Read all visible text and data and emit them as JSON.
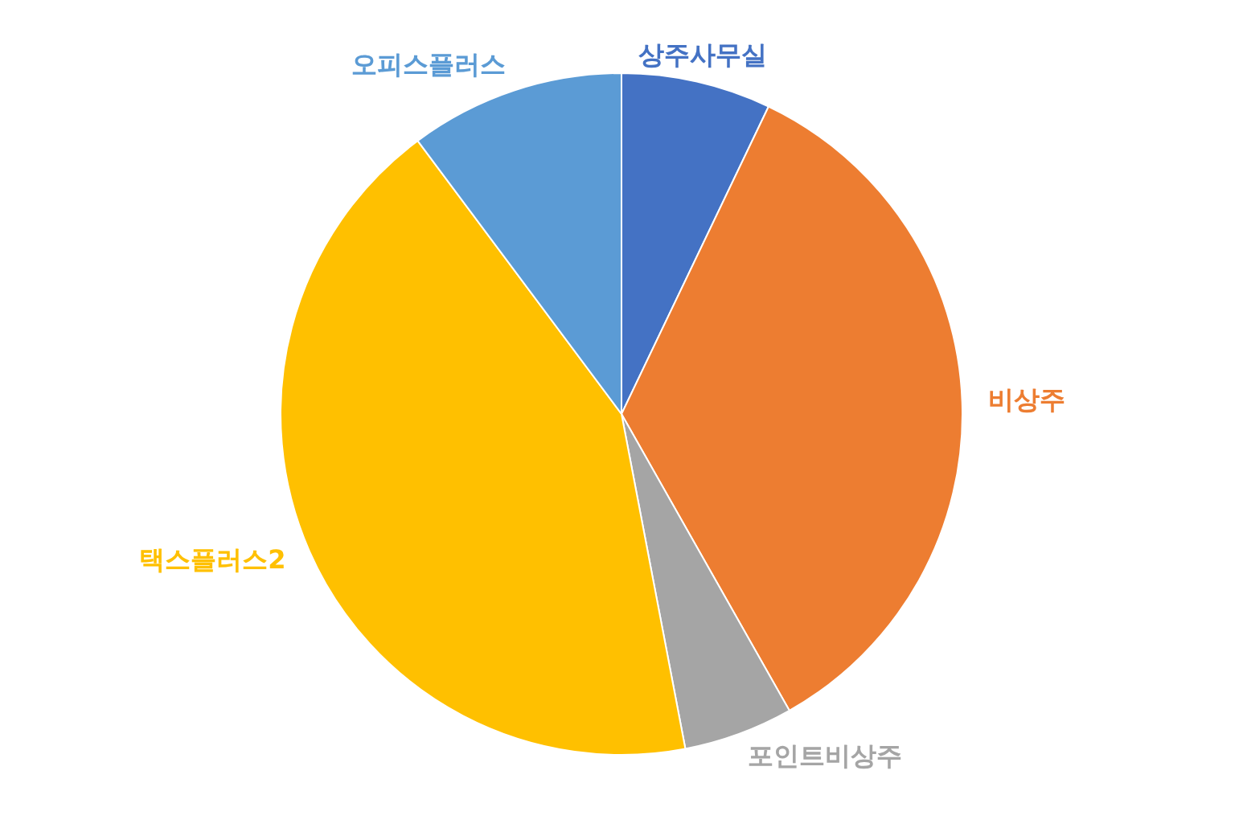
{
  "chart_data": {
    "type": "pie",
    "categories": [
      "상주사무실",
      "비상주",
      "포인트비상주",
      "택스플러스2",
      "오피스플러스"
    ],
    "values": [
      7.1,
      34.7,
      5.2,
      42.8,
      10.2
    ],
    "colors": [
      "#4472c4",
      "#ed7d31",
      "#a5a5a5",
      "#ffc000",
      "#5b9bd5"
    ],
    "legend": false
  }
}
